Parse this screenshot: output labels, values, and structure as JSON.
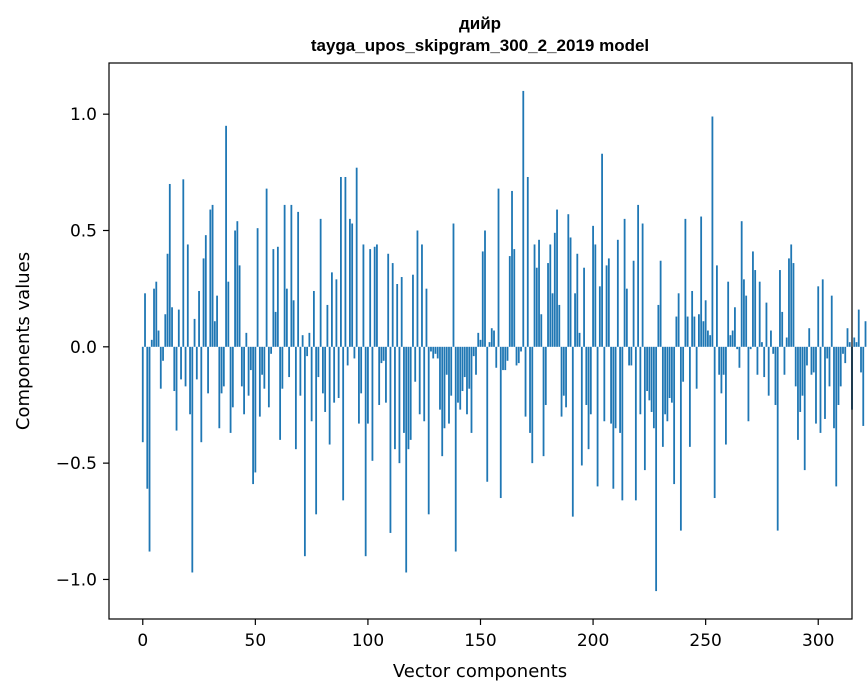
{
  "chart_data": {
    "type": "bar",
    "title": "дийр",
    "subtitle": "tayga_upos_skipgram_300_2_2019 model",
    "xlabel": "Vector components",
    "ylabel": "Components values",
    "xlim": [
      -15,
      315
    ],
    "ylim": [
      -1.17,
      1.22
    ],
    "xticks": [
      0,
      50,
      100,
      150,
      200,
      250,
      300
    ],
    "yticks": [
      -1.0,
      -0.5,
      0.0,
      0.5,
      1.0
    ],
    "ytick_labels": [
      "−1.0",
      "−0.5",
      "0.0",
      "0.5",
      "1.0"
    ],
    "grid": false,
    "bar_color": "#1f77b4",
    "values": [
      -0.41,
      0.23,
      -0.61,
      -0.88,
      0.03,
      0.25,
      0.28,
      0.07,
      -0.18,
      -0.06,
      0.14,
      0.4,
      0.7,
      0.17,
      -0.19,
      -0.36,
      0.16,
      -0.14,
      0.72,
      -0.17,
      0.44,
      -0.29,
      -0.97,
      0.12,
      -0.14,
      0.24,
      -0.41,
      0.38,
      0.48,
      -0.2,
      0.59,
      0.61,
      0.11,
      0.22,
      -0.35,
      -0.2,
      -0.17,
      0.95,
      0.28,
      -0.37,
      -0.26,
      0.5,
      0.54,
      0.35,
      -0.17,
      -0.29,
      0.06,
      -0.21,
      -0.1,
      -0.59,
      -0.54,
      0.51,
      -0.3,
      -0.12,
      -0.18,
      0.68,
      -0.26,
      -0.03,
      0.42,
      0.15,
      0.43,
      -0.4,
      -0.18,
      0.61,
      0.25,
      -0.13,
      0.61,
      0.2,
      -0.44,
      0.58,
      -0.21,
      0.05,
      -0.9,
      -0.04,
      0.06,
      -0.32,
      0.24,
      -0.72,
      -0.13,
      0.55,
      -0.2,
      -0.28,
      0.18,
      -0.42,
      0.32,
      -0.24,
      0.29,
      -0.22,
      0.73,
      -0.66,
      0.73,
      -0.08,
      0.55,
      0.53,
      -0.05,
      0.77,
      -0.33,
      -0.2,
      0.44,
      -0.9,
      -0.33,
      0.42,
      -0.49,
      0.43,
      0.44,
      -0.25,
      -0.07,
      -0.06,
      -0.24,
      0.4,
      -0.8,
      0.36,
      -0.44,
      0.27,
      -0.5,
      0.3,
      -0.37,
      -0.97,
      -0.44,
      -0.4,
      0.31,
      -0.15,
      0.5,
      -0.29,
      0.44,
      -0.32,
      0.25,
      -0.72,
      -0.02,
      -0.05,
      -0.03,
      -0.05,
      -0.27,
      -0.47,
      -0.35,
      -0.12,
      -0.33,
      -0.21,
      0.53,
      -0.88,
      -0.24,
      -0.27,
      -0.19,
      -0.13,
      -0.29,
      -0.18,
      -0.37,
      -0.04,
      -0.12,
      0.06,
      0.03,
      0.41,
      0.5,
      -0.58,
      0.02,
      0.08,
      0.07,
      -0.09,
      0.68,
      -0.65,
      -0.1,
      -0.1,
      -0.06,
      0.39,
      0.67,
      0.42,
      -0.08,
      -0.07,
      -0.02,
      1.1,
      -0.3,
      0.73,
      -0.37,
      -0.5,
      0.44,
      0.34,
      0.46,
      0.14,
      -0.47,
      -0.25,
      0.36,
      0.44,
      0.23,
      0.49,
      0.59,
      0.18,
      -0.3,
      -0.21,
      -0.26,
      0.57,
      0.47,
      -0.73,
      0.23,
      0.4,
      0.06,
      -0.51,
      0.34,
      -0.25,
      -0.44,
      -0.29,
      0.52,
      0.44,
      -0.6,
      0.26,
      0.83,
      -0.32,
      0.35,
      0.38,
      -0.33,
      -0.61,
      -0.35,
      0.46,
      -0.37,
      -0.66,
      0.55,
      0.25,
      -0.08,
      -0.08,
      0.37,
      -0.66,
      0.61,
      -0.29,
      0.53,
      -0.53,
      -0.19,
      -0.23,
      -0.28,
      -0.35,
      -1.05,
      0.18,
      0.37,
      -0.43,
      -0.29,
      -0.32,
      -0.22,
      -0.24,
      -0.59,
      0.13,
      0.23,
      -0.79,
      -0.15,
      0.55,
      0.13,
      -0.43,
      0.24,
      0.13,
      -0.18,
      0.14,
      0.56,
      0.11,
      0.2,
      0.07,
      0.05,
      0.99,
      -0.65,
      0.35,
      -0.12,
      -0.2,
      -0.12,
      -0.42,
      0.28,
      0.05,
      0.07,
      0.17,
      -0.01,
      -0.09,
      0.54,
      0.29,
      0.22,
      -0.32,
      -0.01,
      0.41,
      0.33,
      -0.12,
      0.28,
      0.02,
      -0.13,
      0.19,
      -0.21,
      0.07,
      -0.03,
      -0.25,
      -0.79,
      0.33,
      0.15,
      -0.12,
      0.04,
      0.38,
      0.44,
      0.36,
      -0.17,
      -0.4,
      -0.28,
      -0.21,
      -0.53,
      -0.08,
      0.08,
      -0.12,
      -0.11,
      -0.33,
      0.26,
      -0.37,
      0.29,
      -0.31,
      -0.05,
      -0.17,
      0.22,
      -0.35,
      -0.6,
      -0.25,
      -0.17,
      -0.03,
      -0.07,
      0.08,
      0.02,
      -0.27,
      0.04,
      0.02,
      0.16,
      -0.11,
      -0.34,
      0.11
    ]
  }
}
